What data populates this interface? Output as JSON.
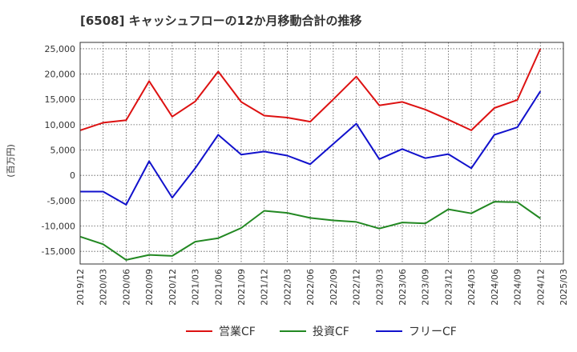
{
  "chart_data": {
    "type": "line",
    "title": "[6508]  キャッシュフローの12か月移動合計の推移",
    "ylabel": "(百万円)",
    "xlabel": "",
    "ylim": [
      -17500,
      26250
    ],
    "yticks": [
      25000,
      20000,
      15000,
      10000,
      5000,
      0,
      -5000,
      -10000,
      -15000
    ],
    "ytick_labels": [
      "25,000",
      "20,000",
      "15,000",
      "10,000",
      "5,000",
      "0",
      "-5,000",
      "-10,000",
      "-15,000"
    ],
    "categories": [
      "2019/12",
      "2020/03",
      "2020/06",
      "2020/09",
      "2020/12",
      "2021/03",
      "2021/06",
      "2021/09",
      "2021/12",
      "2022/03",
      "2022/06",
      "2022/09",
      "2022/12",
      "2023/03",
      "2023/06",
      "2023/09",
      "2023/12",
      "2024/03",
      "2024/06",
      "2024/09",
      "2024/12",
      "2025/03"
    ],
    "grid": true,
    "legend_position": "bottom",
    "series": [
      {
        "name": "営業CF",
        "color": "#dd1111",
        "values": [
          8900,
          10400,
          10900,
          18600,
          11600,
          14600,
          20500,
          14500,
          11800,
          11400,
          10600,
          15000,
          19500,
          13800,
          14500,
          13000,
          11000,
          8900,
          13300,
          14900,
          25000,
          null
        ]
      },
      {
        "name": "投資CF",
        "color": "#228822",
        "values": [
          -12100,
          -13600,
          -16700,
          -15700,
          -15900,
          -13100,
          -12400,
          -10400,
          -7000,
          -7400,
          -8400,
          -8900,
          -9200,
          -10500,
          -9300,
          -9500,
          -6700,
          -7500,
          -5200,
          -5300,
          -8500,
          null
        ]
      },
      {
        "name": "フリーCF",
        "color": "#1111cc",
        "values": [
          -3200,
          -3200,
          -5800,
          2800,
          -4400,
          1400,
          8000,
          4100,
          4700,
          3900,
          2200,
          6200,
          10200,
          3200,
          5200,
          3400,
          4200,
          1400,
          8000,
          9500,
          16600,
          null
        ]
      }
    ]
  }
}
